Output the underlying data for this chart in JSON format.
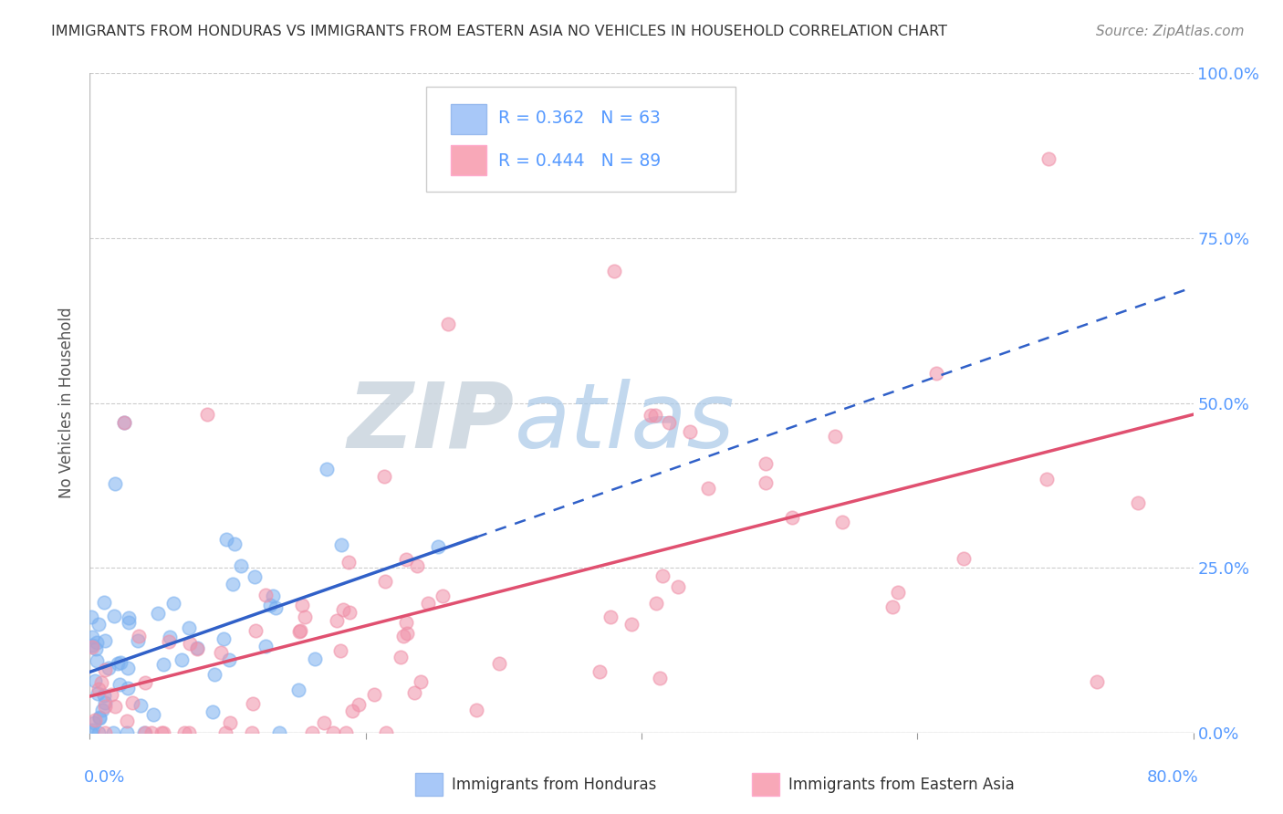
{
  "title": "IMMIGRANTS FROM HONDURAS VS IMMIGRANTS FROM EASTERN ASIA NO VEHICLES IN HOUSEHOLD CORRELATION CHART",
  "source": "Source: ZipAtlas.com",
  "ylabel": "No Vehicles in Household",
  "x_range": [
    0.0,
    0.8
  ],
  "y_range": [
    0.0,
    1.0
  ],
  "legend_1_color": "#a8c8f8",
  "legend_2_color": "#f8a8b8",
  "scatter_1_color": "#7ab0f0",
  "scatter_2_color": "#f090a8",
  "trendline_1_color": "#3060c8",
  "trendline_2_color": "#e05070",
  "background_color": "#ffffff",
  "watermark_zip": "ZIP",
  "watermark_atlas": "atlas",
  "watermark_zip_color": "#c0ccd8",
  "watermark_atlas_color": "#a8c8e8",
  "R1": 0.362,
  "N1": 63,
  "R2": 0.444,
  "N2": 89,
  "seed": 42,
  "grid_color": "#cccccc",
  "tick_color": "#aaaaaa",
  "label_color": "#5599ff",
  "text_color": "#555555",
  "title_color": "#333333",
  "source_color": "#888888"
}
